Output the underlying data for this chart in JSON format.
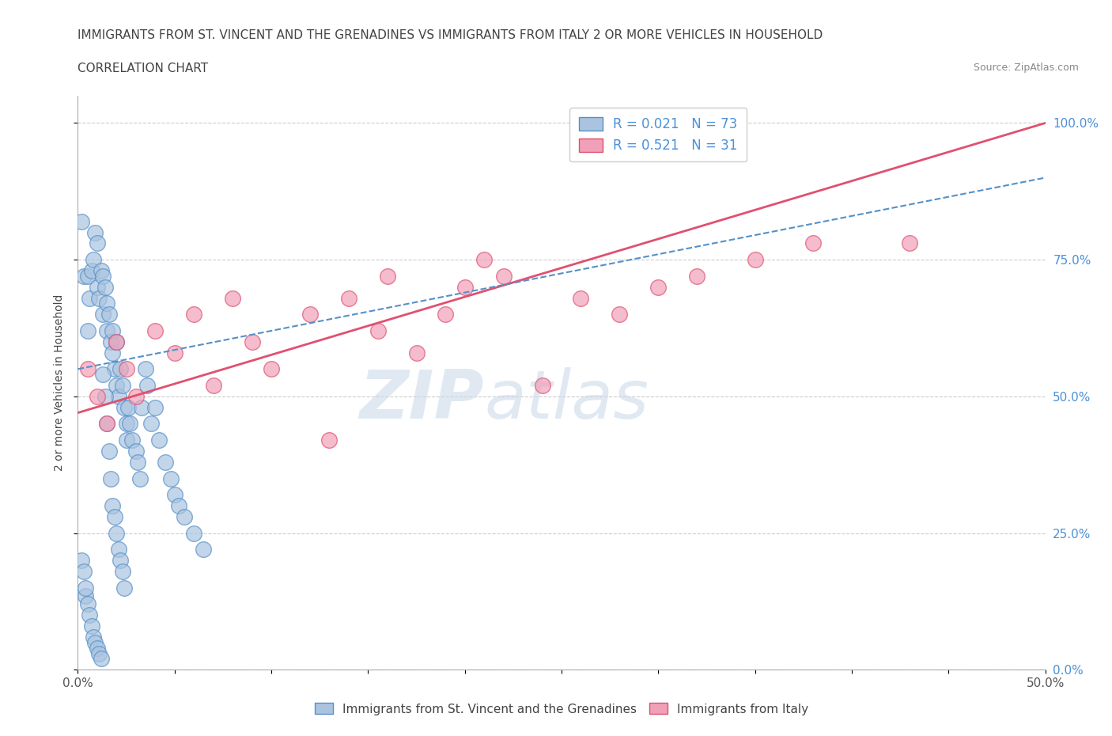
{
  "title_line1": "IMMIGRANTS FROM ST. VINCENT AND THE GRENADINES VS IMMIGRANTS FROM ITALY 2 OR MORE VEHICLES IN HOUSEHOLD",
  "title_line2": "CORRELATION CHART",
  "source_text": "Source: ZipAtlas.com",
  "ylabel": "2 or more Vehicles in Household",
  "watermark_zip": "ZIP",
  "watermark_atlas": "atlas",
  "xlim": [
    0.0,
    0.5
  ],
  "ylim": [
    0.0,
    1.05
  ],
  "xticks": [
    0.0,
    0.05,
    0.1,
    0.15,
    0.2,
    0.25,
    0.3,
    0.35,
    0.4,
    0.45,
    0.5
  ],
  "xticklabels_show": [
    "0.0%",
    "",
    "",
    "",
    "",
    "",
    "",
    "",
    "",
    "",
    "50.0%"
  ],
  "yticks": [
    0.0,
    0.25,
    0.5,
    0.75,
    1.0
  ],
  "yticklabels_left": [
    "",
    "",
    "",
    "",
    ""
  ],
  "yticklabels_right": [
    "0.0%",
    "25.0%",
    "50.0%",
    "75.0%",
    "100.0%"
  ],
  "blue_color": "#aac4e0",
  "pink_color": "#f0a0b8",
  "blue_edge_color": "#5590c8",
  "pink_edge_color": "#e05070",
  "blue_line_color": "#5590c8",
  "pink_line_color": "#e05070",
  "blue_R": 0.021,
  "blue_N": 73,
  "pink_R": 0.521,
  "pink_N": 31,
  "blue_scatter_x": [
    0.002,
    0.003,
    0.004,
    0.005,
    0.005,
    0.006,
    0.007,
    0.008,
    0.009,
    0.01,
    0.01,
    0.011,
    0.012,
    0.013,
    0.013,
    0.014,
    0.015,
    0.015,
    0.016,
    0.017,
    0.018,
    0.018,
    0.019,
    0.02,
    0.02,
    0.021,
    0.022,
    0.023,
    0.024,
    0.025,
    0.025,
    0.026,
    0.027,
    0.028,
    0.03,
    0.031,
    0.032,
    0.033,
    0.035,
    0.036,
    0.038,
    0.04,
    0.042,
    0.045,
    0.048,
    0.05,
    0.052,
    0.055,
    0.06,
    0.065,
    0.002,
    0.003,
    0.004,
    0.005,
    0.006,
    0.007,
    0.008,
    0.009,
    0.01,
    0.011,
    0.012,
    0.013,
    0.014,
    0.015,
    0.016,
    0.017,
    0.018,
    0.019,
    0.02,
    0.021,
    0.022,
    0.023,
    0.024
  ],
  "blue_scatter_y": [
    0.82,
    0.72,
    0.135,
    0.62,
    0.72,
    0.68,
    0.73,
    0.75,
    0.8,
    0.78,
    0.7,
    0.68,
    0.73,
    0.72,
    0.65,
    0.7,
    0.67,
    0.62,
    0.65,
    0.6,
    0.58,
    0.62,
    0.55,
    0.6,
    0.52,
    0.5,
    0.55,
    0.52,
    0.48,
    0.45,
    0.42,
    0.48,
    0.45,
    0.42,
    0.4,
    0.38,
    0.35,
    0.48,
    0.55,
    0.52,
    0.45,
    0.48,
    0.42,
    0.38,
    0.35,
    0.32,
    0.3,
    0.28,
    0.25,
    0.22,
    0.2,
    0.18,
    0.15,
    0.12,
    0.1,
    0.08,
    0.06,
    0.05,
    0.04,
    0.03,
    0.02,
    0.54,
    0.5,
    0.45,
    0.4,
    0.35,
    0.3,
    0.28,
    0.25,
    0.22,
    0.2,
    0.18,
    0.15
  ],
  "pink_scatter_x": [
    0.005,
    0.01,
    0.015,
    0.02,
    0.025,
    0.03,
    0.04,
    0.05,
    0.06,
    0.07,
    0.08,
    0.09,
    0.1,
    0.12,
    0.13,
    0.14,
    0.155,
    0.16,
    0.175,
    0.19,
    0.2,
    0.21,
    0.22,
    0.24,
    0.26,
    0.28,
    0.3,
    0.32,
    0.35,
    0.38,
    0.43
  ],
  "pink_scatter_y": [
    0.55,
    0.5,
    0.45,
    0.6,
    0.55,
    0.5,
    0.62,
    0.58,
    0.65,
    0.52,
    0.68,
    0.6,
    0.55,
    0.65,
    0.42,
    0.68,
    0.62,
    0.72,
    0.58,
    0.65,
    0.7,
    0.75,
    0.72,
    0.52,
    0.68,
    0.65,
    0.7,
    0.72,
    0.75,
    0.78,
    0.78
  ],
  "pink_trend_x": [
    0.0,
    0.5
  ],
  "pink_trend_y": [
    0.47,
    1.0
  ],
  "blue_trend_x": [
    0.0,
    0.5
  ],
  "blue_trend_y": [
    0.55,
    0.9
  ],
  "grid_color": "#cccccc",
  "background_color": "#ffffff",
  "legend_label_blue": "Immigrants from St. Vincent and the Grenadines",
  "legend_label_pink": "Immigrants from Italy",
  "legend_text_color": "#333333",
  "right_tick_color": "#4a90d9",
  "left_tick_color": "#555555"
}
